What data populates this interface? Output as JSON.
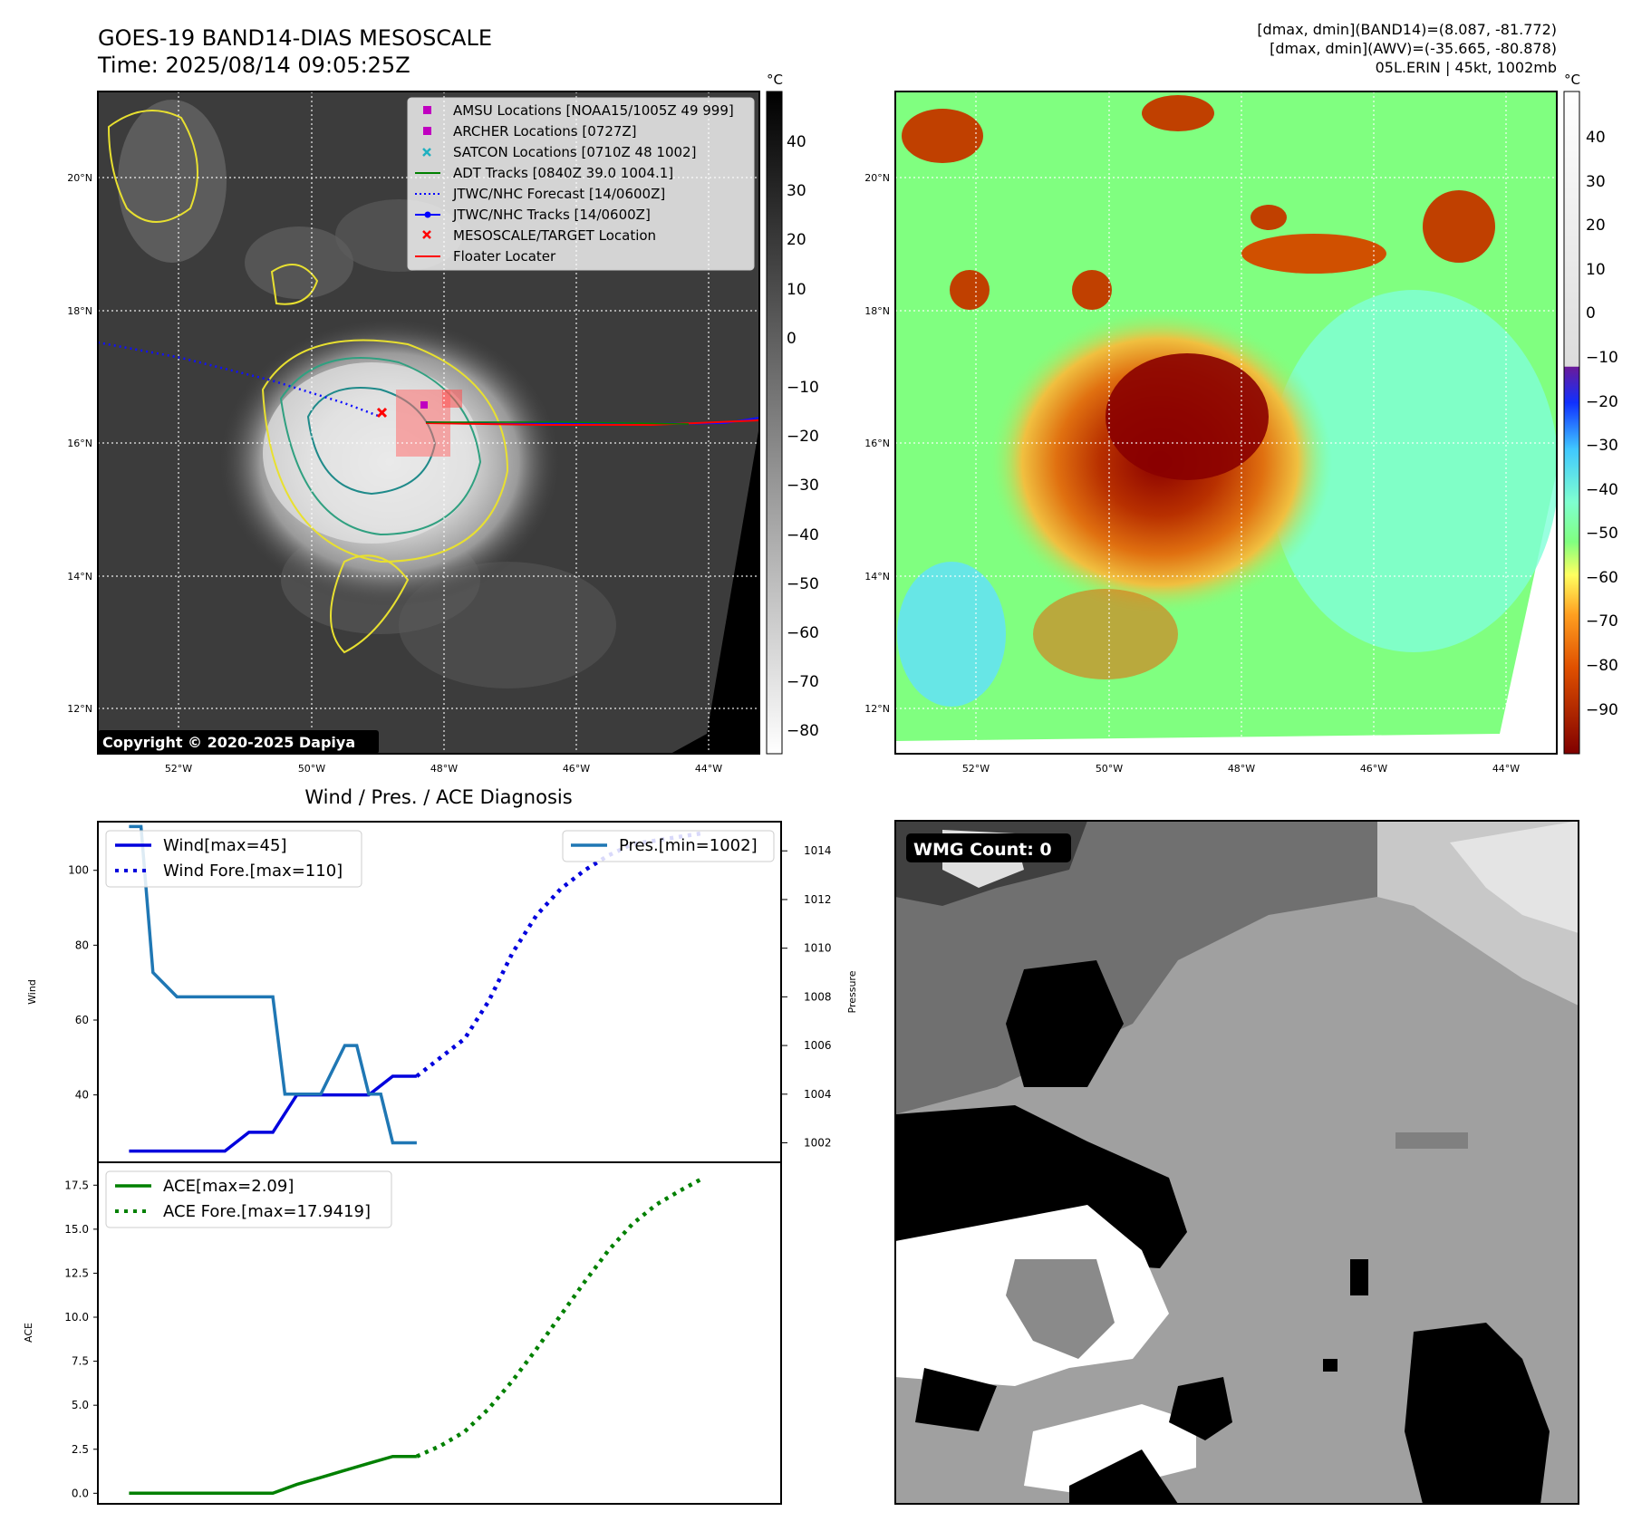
{
  "header": {
    "title_line1": "GOES-19 BAND14-DIAS MESOSCALE",
    "title_line2": "Time: 2025/08/14 09:05:25Z",
    "stats_line1": "[dmax, dmin](BAND14)=(8.087, -81.772)",
    "stats_line2": "[dmax, dmin](AWV)=(-35.665, -80.878)",
    "stats_line3": "05L.ERIN | 45kt, 1002mb"
  },
  "ir_panel": {
    "legend": [
      {
        "label": "AMSU Locations [NOAA15/1005Z 49 999]",
        "marker": "square",
        "color": "#c000c0"
      },
      {
        "label": "ARCHER Locations [0727Z]",
        "marker": "square",
        "color": "#c000c0"
      },
      {
        "label": "SATCON Locations [0710Z 48 1002]",
        "marker": "x",
        "color": "#20b0c0"
      },
      {
        "label": "ADT Tracks [0840Z 39.0 1004.1]",
        "marker": "line",
        "color": "#008000"
      },
      {
        "label": "JTWC/NHC Forecast [14/0600Z]",
        "marker": "dotted",
        "color": "#0000ff"
      },
      {
        "label": "JTWC/NHC Tracks [14/0600Z]",
        "marker": "line-dot",
        "color": "#0000ff"
      },
      {
        "label": "MESOSCALE/TARGET Location",
        "marker": "x",
        "color": "#ff0000"
      },
      {
        "label": "Floater Locater",
        "marker": "line",
        "color": "#ff0000"
      }
    ],
    "copyright": "Copyright © 2020-2025 Dapiya",
    "colorbar_unit": "°C",
    "colorbar_ticks": [
      "40",
      "30",
      "20",
      "10",
      "0",
      "−10",
      "−20",
      "−30",
      "−40",
      "−50",
      "−60",
      "−70",
      "−80"
    ]
  },
  "awv_panel": {
    "colorbar_unit": "°C",
    "colorbar_ticks": [
      "40",
      "30",
      "20",
      "10",
      "0",
      "−10",
      "−20",
      "−30",
      "−40",
      "−50",
      "−60",
      "−70",
      "−80",
      "−90"
    ]
  },
  "map_axes": {
    "lat_labels": [
      "20°N",
      "18°N",
      "16°N",
      "14°N",
      "12°N"
    ],
    "lon_labels": [
      "52°W",
      "50°W",
      "48°W",
      "46°W",
      "44°W"
    ]
  },
  "wmg_panel": {
    "badge": "WMG Count: 0"
  },
  "chart_data": [
    {
      "type": "line",
      "title": "Wind / Pres. / ACE Diagnosis",
      "ylabel": "Wind",
      "ylabel_right": "Pressure",
      "ylim": [
        22,
        113
      ],
      "ylim_right": [
        1001.2,
        1015.2
      ],
      "yticks": [
        "40",
        "60",
        "80",
        "100"
      ],
      "yticks_right": [
        "1002",
        "1004",
        "1006",
        "1008",
        "1010",
        "1012",
        "1014"
      ],
      "series": [
        {
          "name": "Wind[max=45]",
          "axis": "left",
          "color": "#0000dd",
          "style": "solid",
          "x": [
            0,
            1,
            2,
            3,
            4,
            5,
            6,
            7,
            8,
            9,
            10,
            11,
            12
          ],
          "values": [
            25,
            25,
            25,
            25,
            25,
            30,
            30,
            40,
            40,
            40,
            40,
            45,
            45
          ]
        },
        {
          "name": "Wind Fore.[max=110]",
          "axis": "left",
          "color": "#0000dd",
          "style": "dotted",
          "x": [
            12,
            13,
            14,
            15,
            16,
            17,
            18,
            19,
            20,
            21,
            22,
            23,
            24
          ],
          "values": [
            45,
            50,
            55,
            65,
            78,
            88,
            95,
            100,
            104,
            107,
            108,
            109,
            110
          ]
        },
        {
          "name": "Pres.[min=1002]",
          "axis": "right",
          "color": "#1f77b4",
          "style": "solid",
          "x": [
            0,
            0.5,
            1,
            2,
            3,
            4,
            5,
            6,
            6.5,
            7,
            8,
            9,
            9.5,
            10,
            10.5,
            11,
            12
          ],
          "values": [
            1015,
            1015,
            1009,
            1008,
            1008,
            1008,
            1008,
            1008,
            1004,
            1004,
            1004,
            1006,
            1006,
            1004,
            1004,
            1002,
            1002
          ]
        }
      ]
    },
    {
      "type": "line",
      "ylabel": "ACE",
      "ylim": [
        -0.6,
        18.8
      ],
      "yticks": [
        "0.0",
        "2.5",
        "5.0",
        "7.5",
        "10.0",
        "12.5",
        "15.0",
        "17.5"
      ],
      "series": [
        {
          "name": "ACE[max=2.09]",
          "color": "#008000",
          "style": "solid",
          "x": [
            0,
            1,
            2,
            3,
            4,
            5,
            6,
            7,
            8,
            9,
            10,
            11,
            12
          ],
          "values": [
            0,
            0,
            0,
            0,
            0,
            0,
            0,
            0.5,
            0.9,
            1.3,
            1.7,
            2.09,
            2.09
          ]
        },
        {
          "name": "ACE Fore.[max=17.9419]",
          "color": "#008000",
          "style": "dotted",
          "x": [
            12,
            13,
            14,
            15,
            16,
            17,
            18,
            19,
            20,
            21,
            22,
            23,
            24
          ],
          "values": [
            2.09,
            2.7,
            3.5,
            4.8,
            6.4,
            8.2,
            10.1,
            12.0,
            13.8,
            15.3,
            16.4,
            17.2,
            17.9419
          ]
        }
      ]
    }
  ]
}
